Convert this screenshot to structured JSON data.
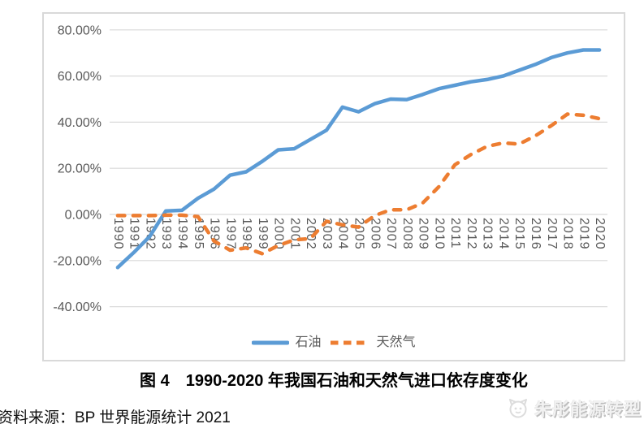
{
  "chart_data": {
    "type": "line",
    "x": [
      "1990",
      "1991",
      "1992",
      "1993",
      "1994",
      "1995",
      "1996",
      "1997",
      "1998",
      "1999",
      "2000",
      "2001",
      "2002",
      "2003",
      "2004",
      "2005",
      "2006",
      "2007",
      "2008",
      "2009",
      "2010",
      "2011",
      "2012",
      "2013",
      "2014",
      "2015",
      "2016",
      "2017",
      "2018",
      "2019",
      "2020"
    ],
    "series": [
      {
        "name": "石油",
        "color": "#5B9BD5",
        "line_style": "solid",
        "values": [
          -23,
          -16.5,
          -9.5,
          1.5,
          1.8,
          7,
          11,
          17,
          18.5,
          23,
          28,
          28.5,
          32.5,
          36.5,
          46.5,
          44.5,
          48,
          50,
          49.8,
          52,
          54.5,
          56,
          57.5,
          58.5,
          60,
          62.5,
          65,
          68,
          70,
          71.3,
          71.3
        ]
      },
      {
        "name": "天然气",
        "color": "#ED7D31",
        "line_style": "dashed",
        "values": [
          -0.5,
          -0.5,
          -0.5,
          -0.3,
          -0.3,
          -1,
          -11.5,
          -15.5,
          -14.5,
          -17,
          -13.5,
          -11,
          -10.5,
          -3,
          -4.5,
          -5.5,
          -0.5,
          2,
          2,
          5,
          12,
          21.5,
          26,
          29.5,
          31,
          30.5,
          34,
          38.5,
          43.5,
          43,
          41.5
        ]
      }
    ],
    "y_axis": {
      "min": -40,
      "max": 80,
      "tick_values": [
        80,
        60,
        40,
        20,
        0,
        -20,
        -40
      ],
      "tick_labels": [
        "80.00%",
        "60.00%",
        "40.00%",
        "20.00%",
        "0.00%",
        "-20.00%",
        "-40.00%"
      ],
      "unit": "%"
    },
    "grid": true,
    "legend_position": "bottom",
    "x_label_rotation": "vertical",
    "colors": {
      "gridline": "#D9D9D9",
      "frame_border": "#D9D9D9",
      "axis_text": "#595959"
    }
  },
  "caption": "图 4　1990-2020 年我国石油和天然气进口依存度变化",
  "source_note": "资料来源：BP 世界能源统计 2021",
  "watermark": "朱彤能源转型"
}
